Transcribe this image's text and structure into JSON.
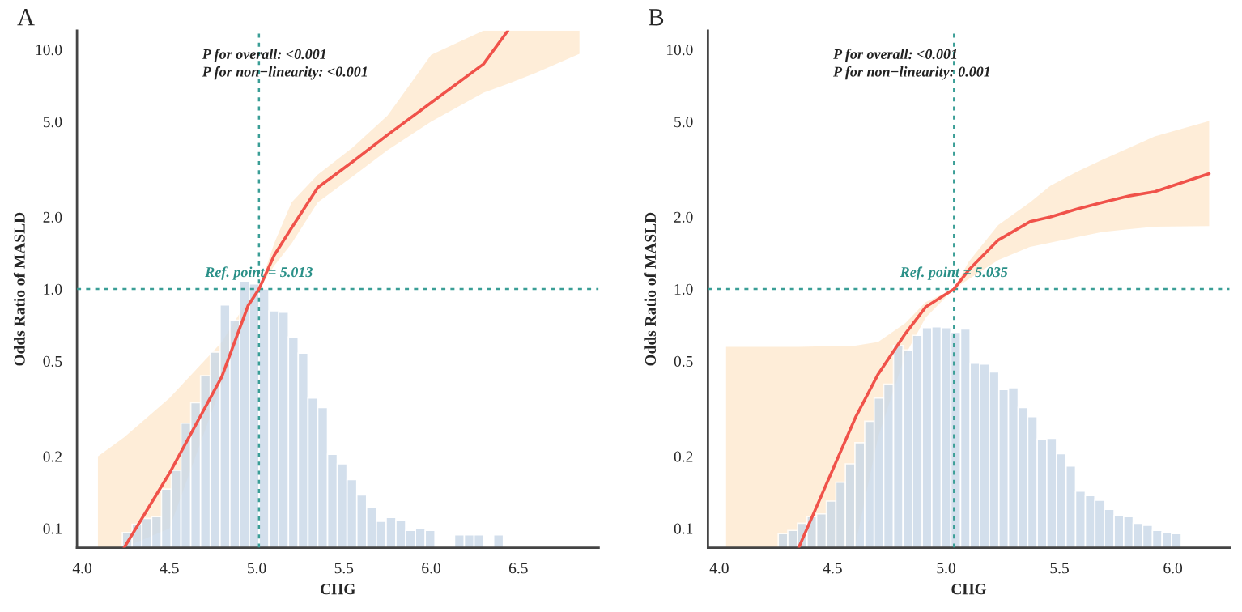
{
  "chart_data": [
    {
      "type": "line",
      "title": "A",
      "xlabel": "CHG",
      "ylabel": "Odds Ratio of MASLD",
      "log": "y",
      "grid": false,
      "legend": false,
      "xlim": [
        3.97,
        6.96
      ],
      "xticks": [
        {
          "value": 4.0,
          "label": "4.0"
        },
        {
          "value": 4.5,
          "label": "4.5"
        },
        {
          "value": 5.0,
          "label": "5.0"
        },
        {
          "value": 5.5,
          "label": "5.5"
        },
        {
          "value": 6.0,
          "label": "6.0"
        },
        {
          "value": 6.5,
          "label": "6.5"
        }
      ],
      "ylim": [
        0.083,
        12
      ],
      "yticks": [
        0.1,
        0.2,
        0.5,
        {
          "value": 1.0,
          "label": "1.0"
        },
        {
          "value": 2.0,
          "label": "2.0"
        },
        {
          "value": 5.0,
          "label": "5.0"
        },
        {
          "value": 10.0,
          "label": "10.0"
        }
      ],
      "series": [
        {
          "type": "histogram",
          "color": "#c9d8e8",
          "bins": [
            4.23,
            4.286,
            4.342,
            4.398,
            4.454,
            4.51,
            4.566,
            4.622,
            4.678,
            4.734,
            4.79,
            4.846,
            4.902,
            4.958,
            5.014,
            5.07,
            5.126,
            5.182,
            5.238,
            5.294,
            5.35,
            5.406,
            5.462,
            5.518,
            5.574,
            5.63,
            5.686,
            5.742,
            5.798,
            5.854,
            5.91,
            5.966,
            6.022,
            6.078,
            6.134,
            6.19,
            6.246,
            6.302,
            6.358,
            6.414
          ],
          "values": [
            0.096,
            0.104,
            0.11,
            0.112,
            0.146,
            0.175,
            0.275,
            0.335,
            0.434,
            0.545,
            0.857,
            0.74,
            1.08,
            1.05,
            1.0,
            0.81,
            0.8,
            0.63,
            0.54,
            0.35,
            0.32,
            0.204,
            0.186,
            0.16,
            0.138,
            0.123,
            0.107,
            0.111,
            0.108,
            0.098,
            0.1,
            0.098,
            null,
            null,
            0.094,
            0.094,
            0.094,
            null,
            0.094
          ]
        },
        {
          "color": "#f0524a",
          "x": [
            4.09,
            4.24,
            4.5,
            4.8,
            4.95,
            5.013,
            5.1,
            5.2,
            5.35,
            5.55,
            5.75,
            6.0,
            6.3,
            6.44,
            6.6,
            6.85
          ],
          "values": [
            null,
            0.083,
            0.17,
            0.43,
            0.85,
            1.0,
            1.38,
            1.8,
            2.65,
            3.4,
            4.4,
            6.0,
            8.7,
            12,
            null,
            null
          ],
          "lower": [
            0.083,
            0.083,
            0.1,
            0.4,
            0.8,
            1.0,
            1.25,
            1.55,
            2.3,
            2.95,
            3.8,
            5.0,
            6.6,
            7.2,
            8.0,
            9.6
          ],
          "upper": [
            0.2,
            0.24,
            0.35,
            0.6,
            0.9,
            1.0,
            1.55,
            2.3,
            3.0,
            3.9,
            5.3,
            9.5,
            12,
            12,
            12,
            12
          ]
        }
      ],
      "ref_lines": [
        {
          "axis": "x",
          "value": 5.013,
          "color": "#3a9e96",
          "line_style": "dotted"
        },
        {
          "axis": "y",
          "value": 1.0,
          "color": "#3a9e96",
          "line_style": "dotted"
        }
      ],
      "annotations": [
        "P for overall: <0.001\nP for non−linearity: <0.001",
        {
          "text": "Ref. point = 5.013",
          "x": 5.013,
          "y": 1.0
        }
      ]
    },
    {
      "type": "line",
      "title": "B",
      "xlabel": "CHG",
      "ylabel": "Odds Ratio of MASLD",
      "log": "y",
      "grid": false,
      "legend": false,
      "xlim": [
        3.95,
        6.25
      ],
      "xticks": [
        {
          "value": 4.0,
          "label": "4.0"
        },
        {
          "value": 4.5,
          "label": "4.5"
        },
        {
          "value": 5.0,
          "label": "5.0"
        },
        {
          "value": 5.5,
          "label": "5.5"
        },
        {
          "value": 6.0,
          "label": "6.0"
        }
      ],
      "ylim": [
        0.083,
        12
      ],
      "yticks": [
        0.1,
        0.2,
        0.5,
        {
          "value": 1.0,
          "label": "1.0"
        },
        {
          "value": 2.0,
          "label": "2.0"
        },
        {
          "value": 5.0,
          "label": "5.0"
        },
        {
          "value": 10.0,
          "label": "10.0"
        }
      ],
      "series": [
        {
          "type": "histogram",
          "color": "#c9d8e8",
          "bins": [
            4.26,
            4.302,
            4.345,
            4.387,
            4.429,
            4.472,
            4.514,
            4.556,
            4.598,
            4.641,
            4.683,
            4.725,
            4.768,
            4.81,
            4.852,
            4.895,
            4.937,
            4.979,
            5.021,
            5.064,
            5.106,
            5.148,
            5.191,
            5.233,
            5.275,
            5.318,
            5.36,
            5.402,
            5.444,
            5.487,
            5.529,
            5.571,
            5.614,
            5.656,
            5.698,
            5.741,
            5.783,
            5.825,
            5.867,
            5.91,
            5.952,
            5.994,
            6.037
          ],
          "values": [
            0.095,
            0.098,
            0.105,
            0.112,
            0.115,
            0.13,
            0.156,
            0.186,
            0.228,
            0.28,
            0.35,
            0.4,
            0.58,
            0.556,
            0.64,
            0.69,
            0.695,
            0.69,
            0.66,
            0.68,
            0.49,
            0.486,
            0.45,
            0.38,
            0.387,
            0.32,
            0.293,
            0.236,
            0.238,
            0.205,
            0.182,
            0.143,
            0.137,
            0.131,
            0.12,
            0.113,
            0.112,
            0.105,
            0.103,
            0.098,
            0.096,
            0.095
          ]
        },
        {
          "color": "#f0524a",
          "x": [
            4.03,
            4.35,
            4.6,
            4.7,
            4.82,
            4.91,
            5.035,
            5.1,
            5.23,
            5.37,
            5.46,
            5.58,
            5.69,
            5.81,
            5.92,
            6.16
          ],
          "values": [
            null,
            0.083,
            0.29,
            0.44,
            0.65,
            0.84,
            1.0,
            1.2,
            1.6,
            1.91,
            2.0,
            2.16,
            2.3,
            2.45,
            2.55,
            3.03
          ],
          "lower": [
            0.083,
            0.083,
            0.085,
            0.24,
            0.53,
            0.76,
            1.0,
            1.1,
            1.32,
            1.5,
            1.56,
            1.65,
            1.73,
            1.78,
            1.82,
            1.83
          ],
          "upper": [
            0.573,
            0.573,
            0.58,
            0.6,
            0.72,
            0.88,
            1.0,
            1.3,
            1.85,
            2.3,
            2.7,
            3.1,
            3.47,
            3.9,
            4.34,
            5.03
          ]
        }
      ],
      "ref_lines": [
        {
          "axis": "x",
          "value": 5.035,
          "color": "#3a9e96",
          "line_style": "dotted"
        },
        {
          "axis": "y",
          "value": 1.0,
          "color": "#3a9e96",
          "line_style": "dotted"
        }
      ],
      "annotations": [
        "P for overall: <0.001\nP for non−linearity: 0.001",
        {
          "text": "Ref. point = 5.035",
          "x": 5.035,
          "y": 1.0
        }
      ]
    }
  ]
}
